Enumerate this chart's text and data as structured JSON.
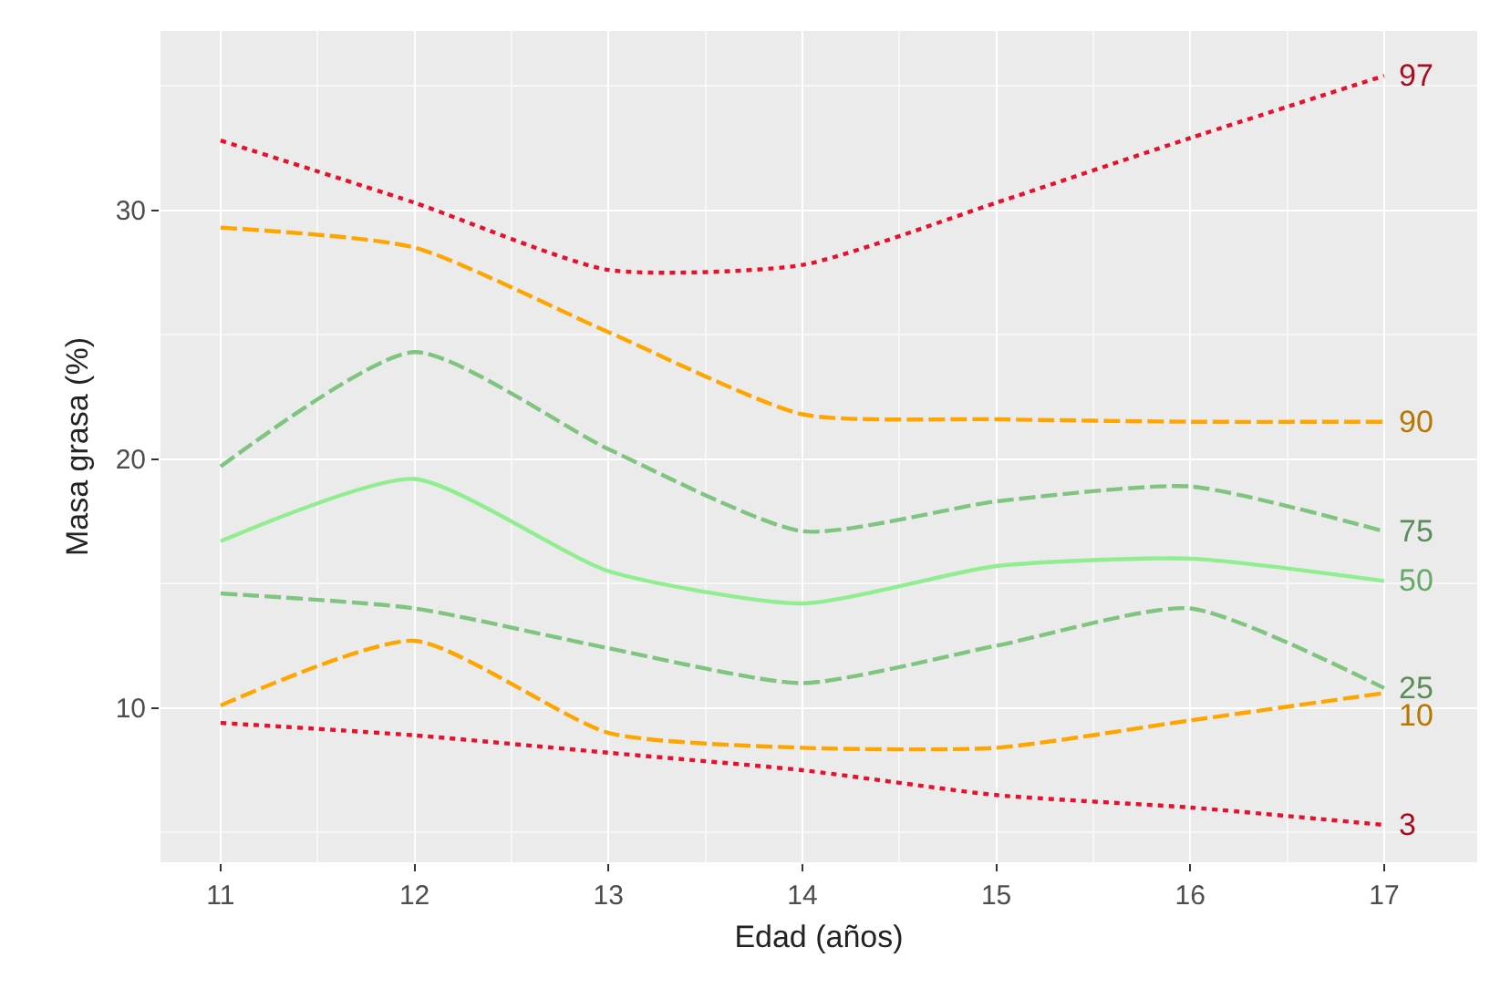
{
  "chart_data": {
    "type": "line",
    "xlabel": "Edad (años)",
    "ylabel": "Masa grasa (%)",
    "x": [
      11,
      12,
      13,
      14,
      15,
      16,
      17
    ],
    "xlim": [
      10.69,
      17.48
    ],
    "xticks": [
      11,
      12,
      13,
      14,
      15,
      16,
      17
    ],
    "ylim": [
      3.8,
      37.2
    ],
    "yticks": [
      10,
      20,
      30
    ],
    "grid": true,
    "legend": false,
    "marker": "none",
    "series": [
      {
        "name": "97",
        "color": "#e8112d",
        "line_style": "dotted",
        "values": [
          32.8,
          30.3,
          27.6,
          27.8,
          30.3,
          32.9,
          35.4
        ]
      },
      {
        "name": "90",
        "color": "#ffa500",
        "line_style": "dashed",
        "values": [
          29.3,
          28.5,
          25.1,
          21.8,
          21.6,
          21.5,
          21.5
        ]
      },
      {
        "name": "75",
        "color": "#7fc47f",
        "line_style": "dashed",
        "values": [
          19.7,
          24.3,
          20.4,
          17.1,
          18.3,
          18.9,
          17.1
        ]
      },
      {
        "name": "50",
        "color": "#90ee90",
        "line_style": "solid",
        "values": [
          16.7,
          19.2,
          15.5,
          14.2,
          15.7,
          16.0,
          15.1
        ]
      },
      {
        "name": "25",
        "color": "#7fc47f",
        "line_style": "dashed",
        "values": [
          14.6,
          14.0,
          12.4,
          11.0,
          12.5,
          14.0,
          10.8
        ]
      },
      {
        "name": "10",
        "color": "#ffa500",
        "line_style": "dashed",
        "values": [
          10.1,
          12.7,
          9.0,
          8.4,
          8.4,
          9.5,
          10.6
        ]
      },
      {
        "name": "3",
        "color": "#e8112d",
        "line_style": "dotted",
        "values": [
          9.4,
          8.9,
          8.2,
          7.5,
          6.5,
          6.0,
          5.3
        ]
      }
    ]
  }
}
